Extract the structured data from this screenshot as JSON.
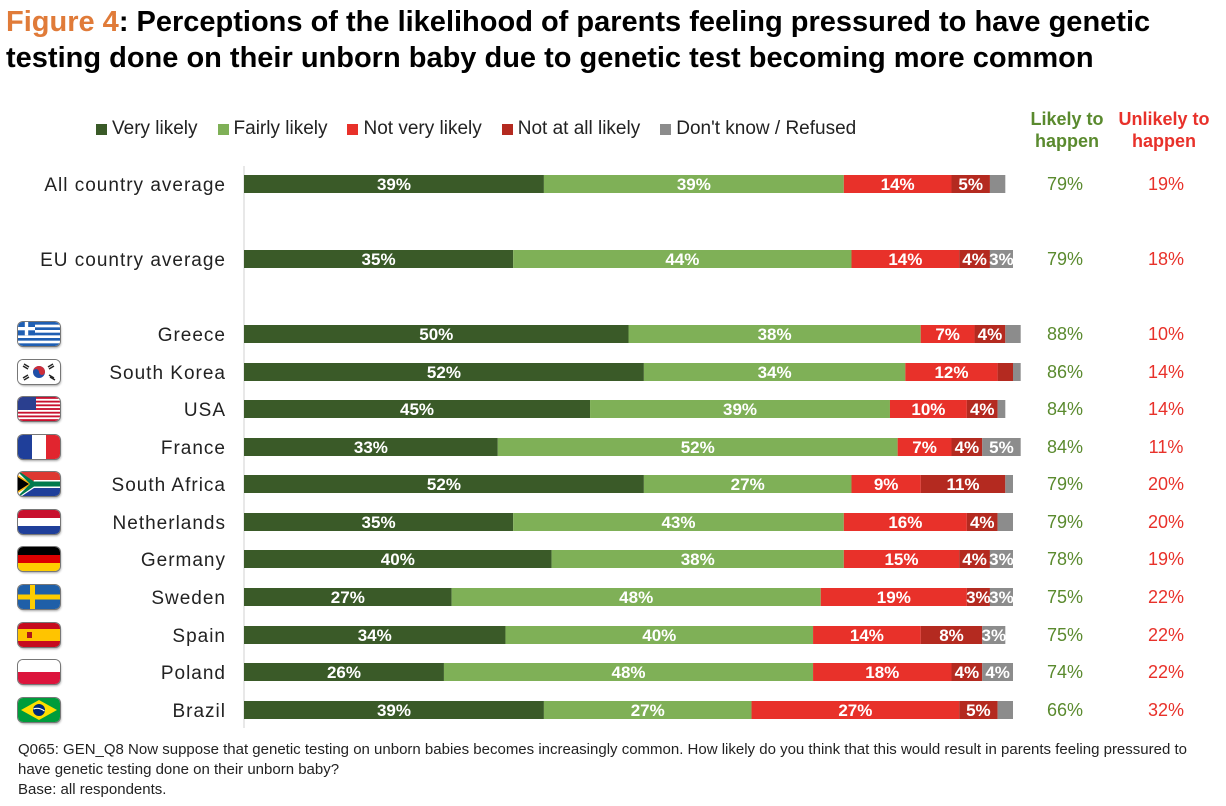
{
  "header": {
    "figure_label": "Figure 4",
    "title_text": ": Perceptions of the likelihood of parents feeling pressured to have genetic testing done on their unborn baby due to genetic test becoming more common"
  },
  "summary_headers": {
    "likely": "Likely to happen",
    "unlikely": "Unlikely to happen"
  },
  "colors": {
    "very_likely": "#3a5a28",
    "fairly_likely": "#7fb057",
    "not_very_likely": "#e8312a",
    "not_at_all_likely": "#b42a20",
    "dont_know": "#8c8c8c",
    "likely_text": "#5a8a2e",
    "unlikely_text": "#e8312a"
  },
  "chart_data": {
    "type": "bar",
    "orientation": "horizontal",
    "stacked": true,
    "xlim": [
      0,
      100
    ],
    "series": [
      {
        "name": "Very likely",
        "values": [
          39,
          35,
          50,
          52,
          45,
          33,
          52,
          35,
          40,
          27,
          34,
          26,
          39
        ]
      },
      {
        "name": "Fairly likely",
        "values": [
          39,
          44,
          38,
          34,
          39,
          52,
          27,
          43,
          38,
          48,
          40,
          48,
          27
        ]
      },
      {
        "name": "Not very likely",
        "values": [
          14,
          14,
          7,
          12,
          10,
          7,
          9,
          16,
          15,
          19,
          14,
          18,
          27
        ]
      },
      {
        "name": "Not at all likely",
        "values": [
          5,
          4,
          4,
          2,
          4,
          4,
          11,
          4,
          4,
          3,
          8,
          4,
          5
        ]
      },
      {
        "name": "Don't know / Refused",
        "values": [
          2,
          3,
          2,
          1,
          1,
          5,
          1,
          2,
          3,
          3,
          3,
          4,
          2
        ]
      }
    ],
    "series_labels": [
      [
        "39%",
        "35%",
        "50%",
        "52%",
        "45%",
        "33%",
        "52%",
        "35%",
        "40%",
        "27%",
        "34%",
        "26%",
        "39%"
      ],
      [
        "39%",
        "44%",
        "38%",
        "34%",
        "39%",
        "52%",
        "27%",
        "43%",
        "38%",
        "48%",
        "40%",
        "48%",
        "27%"
      ],
      [
        "14%",
        "14%",
        "7%",
        "12%",
        "10%",
        "7%",
        "9%",
        "16%",
        "15%",
        "19%",
        "14%",
        "18%",
        "27%"
      ],
      [
        "5%",
        "4%",
        "4%",
        "",
        "4%",
        "4%",
        "11%",
        "4%",
        "4%",
        "3%",
        "8%",
        "4%",
        "5%"
      ],
      [
        "",
        "3%",
        "",
        "",
        "",
        "5%",
        "",
        "",
        "3%",
        "3%",
        "3%",
        "4%",
        ""
      ]
    ],
    "rows": [
      {
        "label": "All country average",
        "flag": "",
        "likely": "79%",
        "unlikely": "19%"
      },
      {
        "label": "EU country average",
        "flag": "",
        "likely": "79%",
        "unlikely": "18%"
      },
      {
        "label": "Greece",
        "flag": "greece-flag",
        "likely": "88%",
        "unlikely": "10%"
      },
      {
        "label": "South Korea",
        "flag": "south-korea-flag",
        "likely": "86%",
        "unlikely": "14%"
      },
      {
        "label": "USA",
        "flag": "usa-flag",
        "likely": "84%",
        "unlikely": "14%"
      },
      {
        "label": "France",
        "flag": "france-flag",
        "likely": "84%",
        "unlikely": "11%"
      },
      {
        "label": "South Africa",
        "flag": "south-africa-flag",
        "likely": "79%",
        "unlikely": "20%"
      },
      {
        "label": "Netherlands",
        "flag": "netherlands-flag",
        "likely": "79%",
        "unlikely": "20%"
      },
      {
        "label": "Germany",
        "flag": "germany-flag",
        "likely": "78%",
        "unlikely": "19%"
      },
      {
        "label": "Sweden",
        "flag": "sweden-flag",
        "likely": "75%",
        "unlikely": "22%"
      },
      {
        "label": "Spain",
        "flag": "spain-flag",
        "likely": "75%",
        "unlikely": "22%"
      },
      {
        "label": "Poland",
        "flag": "poland-flag",
        "likely": "74%",
        "unlikely": "22%"
      },
      {
        "label": "Brazil",
        "flag": "brazil-flag",
        "likely": "66%",
        "unlikely": "32%"
      }
    ],
    "legend_position": "top",
    "grid": false
  },
  "footnote": {
    "question": "Q065: GEN_Q8 Now suppose that genetic testing on unborn babies becomes increasingly common. How likely do you think that this would result in parents feeling pressured to have genetic testing done on their unborn baby?",
    "base": "Base: all respondents."
  }
}
